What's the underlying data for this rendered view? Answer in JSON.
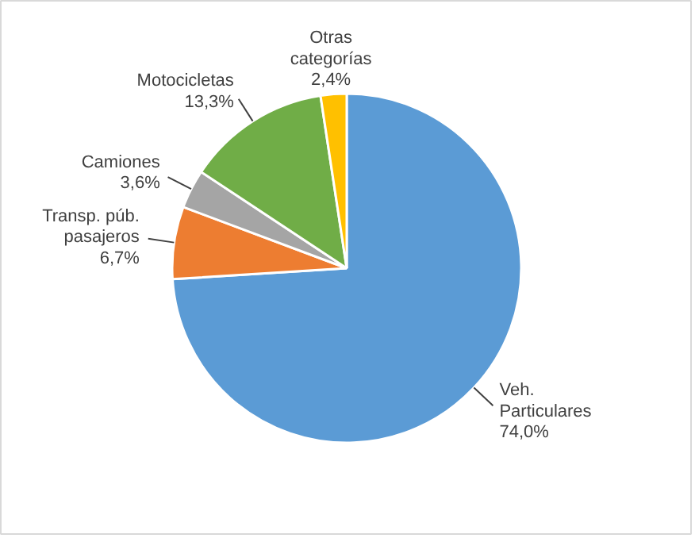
{
  "chart_data": {
    "type": "pie",
    "categories": [
      "Veh. Particulares",
      "Transp. púb. pasajeros",
      "Camiones",
      "Motocicletas",
      "Otras categorías"
    ],
    "values": [
      74.0,
      6.7,
      3.6,
      13.3,
      2.4
    ],
    "colors": [
      "#5b9bd5",
      "#ed7d31",
      "#a5a5a5",
      "#70ad47",
      "#ffc000"
    ],
    "value_labels": [
      "74,0%",
      "6,7%",
      "3,6%",
      "13,3%",
      "2,4%"
    ],
    "legend": false
  }
}
